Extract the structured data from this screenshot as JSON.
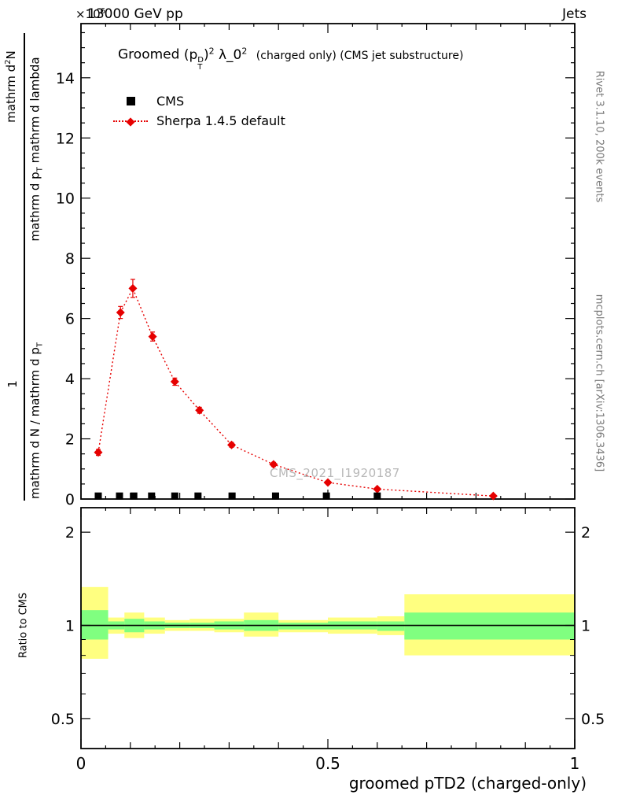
{
  "header": {
    "scale_base": "×10",
    "scale_exp": "6",
    "left": "13000 GeV pp",
    "right": "Jets"
  },
  "main": {
    "title": {
      "word": "Groomed",
      "p_open": "(p",
      "p_sup": "D",
      "p_sub": "T",
      "p_close": ")",
      "p_exp": "2",
      "lam": "λ_0",
      "lam_exp": "2",
      "suffix": "(charged only) (CMS jet substructure)"
    },
    "legend": [
      {
        "label": "CMS",
        "marker": "black-square"
      },
      {
        "label": "Sherpa 1.4.5 default",
        "marker": "red-diamond-dotted-line"
      }
    ],
    "watermark": "CMS_2021_I1920187",
    "ylabel": {
      "num1_pre": "mathrm d",
      "num1_sup": "2",
      "num1_post": "N",
      "den1_pre": "mathrm d p",
      "den1_sub": "T",
      "den1_post": " mathrm d lambda",
      "num2": "1",
      "den2_pre": "mathrm d N / mathrm d p",
      "den2_sub": "T"
    }
  },
  "ratio_panel": {
    "ylabel": "Ratio to CMS"
  },
  "xaxis": {
    "title": "groomed pTD2 (charged-only)"
  },
  "sidebar_right": {
    "top": "Rivet 3.1.10,  200k events",
    "bottom": "mcplots.cern.ch [arXiv:1306.3436]"
  },
  "colors": {
    "sherpa": "#e60000",
    "cms": "#000000",
    "band_outer": "#ffff80",
    "band_inner": "#80ff80",
    "gray_text": "#7a7a7a",
    "watermark": "#b8b8b8"
  },
  "chart_data": [
    {
      "type": "line",
      "panel": "main",
      "title": "Groomed (p_T^D)^2 lambda_0^2 (charged only) (CMS jet substructure)",
      "ylabel": "1 / (dN/dp_T) d2N / (dp_T dlambda)",
      "y_multiplier": "x10^6",
      "xlim": [
        0,
        1
      ],
      "ylim": [
        0,
        15.8
      ],
      "yticks": [
        0,
        2,
        4,
        6,
        8,
        10,
        12,
        14
      ],
      "xticks": [
        0,
        0.5,
        1
      ],
      "grid": false,
      "legend_position": "top-left",
      "series": [
        {
          "name": "CMS",
          "marker": "square",
          "color": "#000000",
          "x": [
            0.035,
            0.078,
            0.107,
            0.143,
            0.19,
            0.237,
            0.306,
            0.394,
            0.497,
            0.6
          ],
          "y": [
            0.1,
            0.1,
            0.1,
            0.1,
            0.1,
            0.1,
            0.1,
            0.1,
            0.1,
            0.1
          ]
        },
        {
          "name": "Sherpa 1.4.5 default",
          "marker": "diamond",
          "line": "dotted",
          "color": "#e60000",
          "x": [
            0.035,
            0.08,
            0.105,
            0.145,
            0.19,
            0.24,
            0.305,
            0.39,
            0.5,
            0.6,
            0.835
          ],
          "y": [
            1.55,
            6.2,
            7.0,
            5.4,
            3.9,
            2.95,
            1.8,
            1.15,
            0.55,
            0.33,
            0.1
          ],
          "yerr": [
            0.1,
            0.2,
            0.3,
            0.15,
            0.12,
            0.1,
            0.08,
            0.07,
            0.05,
            0.04,
            0.02
          ]
        }
      ]
    },
    {
      "type": "ratio-band",
      "panel": "ratio",
      "ylabel": "Ratio to CMS",
      "xlabel": "groomed pTD2 (charged-only)",
      "xlim": [
        0,
        1
      ],
      "ylim": [
        0.4,
        2.4
      ],
      "yscale": "log",
      "yticks": [
        0.5,
        1,
        2
      ],
      "yticks_minor": [
        0.6,
        0.7,
        0.8,
        0.9
      ],
      "xticks": [
        0,
        0.5,
        1
      ],
      "ratio_line": 1.0,
      "bands": [
        {
          "x": [
            0.0,
            0.055
          ],
          "outer": [
            0.78,
            1.33
          ],
          "inner": [
            0.9,
            1.12
          ]
        },
        {
          "x": [
            0.055,
            0.088
          ],
          "outer": [
            0.94,
            1.06
          ],
          "inner": [
            0.97,
            1.03
          ]
        },
        {
          "x": [
            0.088,
            0.128
          ],
          "outer": [
            0.91,
            1.1
          ],
          "inner": [
            0.95,
            1.05
          ]
        },
        {
          "x": [
            0.128,
            0.17
          ],
          "outer": [
            0.94,
            1.06
          ],
          "inner": [
            0.97,
            1.03
          ]
        },
        {
          "x": [
            0.17,
            0.22
          ],
          "outer": [
            0.96,
            1.04
          ],
          "inner": [
            0.98,
            1.02
          ]
        },
        {
          "x": [
            0.22,
            0.27
          ],
          "outer": [
            0.96,
            1.05
          ],
          "inner": [
            0.98,
            1.02
          ]
        },
        {
          "x": [
            0.27,
            0.33
          ],
          "outer": [
            0.95,
            1.05
          ],
          "inner": [
            0.97,
            1.03
          ]
        },
        {
          "x": [
            0.33,
            0.4
          ],
          "outer": [
            0.92,
            1.1
          ],
          "inner": [
            0.96,
            1.04
          ]
        },
        {
          "x": [
            0.4,
            0.5
          ],
          "outer": [
            0.95,
            1.04
          ],
          "inner": [
            0.97,
            1.02
          ]
        },
        {
          "x": [
            0.5,
            0.6
          ],
          "outer": [
            0.94,
            1.06
          ],
          "inner": [
            0.97,
            1.03
          ]
        },
        {
          "x": [
            0.6,
            0.655
          ],
          "outer": [
            0.93,
            1.07
          ],
          "inner": [
            0.96,
            1.03
          ]
        },
        {
          "x": [
            0.655,
            1.0
          ],
          "outer": [
            0.8,
            1.26
          ],
          "inner": [
            0.9,
            1.1
          ]
        }
      ]
    }
  ]
}
